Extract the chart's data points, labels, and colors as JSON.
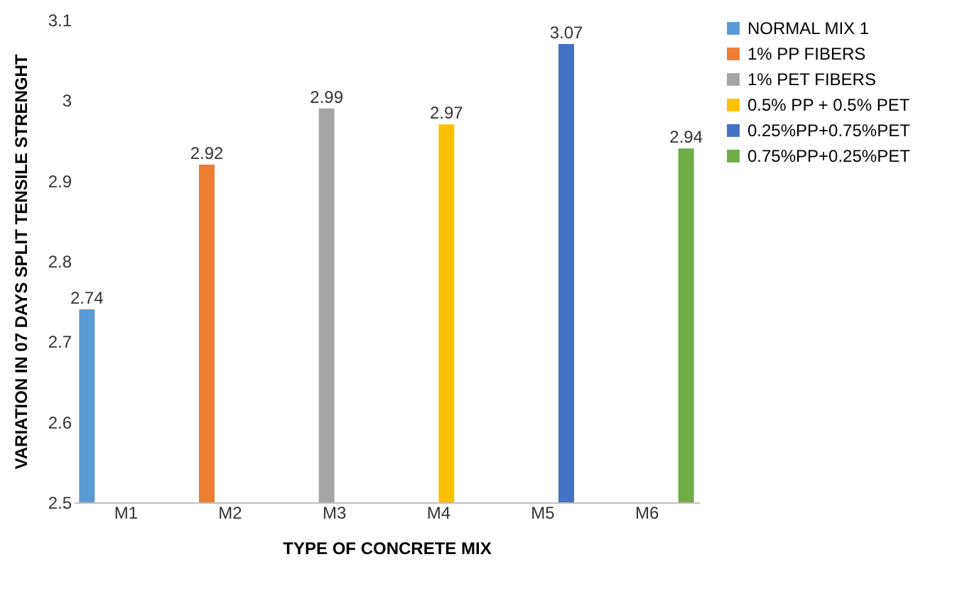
{
  "chart_data": {
    "type": "bar",
    "categories": [
      "M1",
      "M2",
      "M3",
      "M4",
      "M5",
      "M6"
    ],
    "xlabel": "TYPE OF CONCRETE MIX",
    "ylabel": "VARIATION IN 07 DAYS SPLIT TENSILE  STRENGHT",
    "series": [
      {
        "name": "NORMAL MIX 1",
        "color": "#5b9bd5",
        "values": [
          2.74,
          null,
          null,
          null,
          null,
          null
        ]
      },
      {
        "name": "1% PP FIBERS",
        "color": "#ed7d31",
        "values": [
          null,
          2.92,
          null,
          null,
          null,
          null
        ]
      },
      {
        "name": "1% PET FIBERS",
        "color": "#a5a5a5",
        "values": [
          null,
          null,
          2.99,
          null,
          null,
          null
        ]
      },
      {
        "name": "0.5% PP + 0.5% PET",
        "color": "#ffc000",
        "values": [
          null,
          null,
          null,
          2.97,
          null,
          null
        ]
      },
      {
        "name": "0.25%PP+0.75%PET",
        "color": "#4472c4",
        "values": [
          null,
          null,
          null,
          null,
          3.07,
          null
        ]
      },
      {
        "name": "0.75%PP+0.25%PET",
        "color": "#70ad47",
        "values": [
          null,
          null,
          null,
          null,
          null,
          2.94
        ]
      }
    ],
    "ylim": [
      2.5,
      3.1
    ],
    "yticks": [
      2.5,
      2.6,
      2.7,
      2.8,
      2.9,
      3,
      3.1
    ],
    "data_labels": true,
    "legend": "right"
  }
}
